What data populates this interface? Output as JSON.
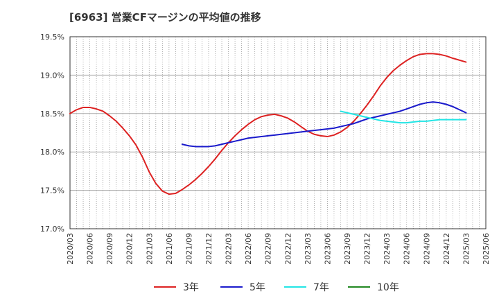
{
  "title": "[6963]  営業CFマージンの平均値の推移",
  "chart_data": {
    "type": "line",
    "x_ticks": [
      "2020/03",
      "2020/06",
      "2020/09",
      "2020/12",
      "2021/03",
      "2021/06",
      "2021/09",
      "2021/12",
      "2022/03",
      "2022/06",
      "2022/09",
      "2022/12",
      "2023/03",
      "2023/06",
      "2023/09",
      "2023/12",
      "2024/03",
      "2024/06",
      "2024/09",
      "2024/12",
      "2025/03",
      "2025/06"
    ],
    "y_ticks": [
      "17.0%",
      "17.5%",
      "18.0%",
      "18.5%",
      "19.0%",
      "19.5%"
    ],
    "ylim": [
      17.0,
      19.5
    ],
    "y_unit": "%",
    "grid": true,
    "legend_position": "bottom",
    "series": [
      {
        "name": "3年",
        "color": "#dd2222",
        "points": [
          [
            "2020/03",
            18.5
          ],
          [
            "2020/04",
            18.55
          ],
          [
            "2020/05",
            18.58
          ],
          [
            "2020/06",
            18.58
          ],
          [
            "2020/07",
            18.56
          ],
          [
            "2020/08",
            18.53
          ],
          [
            "2020/09",
            18.47
          ],
          [
            "2020/10",
            18.4
          ],
          [
            "2020/11",
            18.31
          ],
          [
            "2020/12",
            18.21
          ],
          [
            "2021/01",
            18.09
          ],
          [
            "2021/02",
            17.93
          ],
          [
            "2021/03",
            17.74
          ],
          [
            "2021/04",
            17.59
          ],
          [
            "2021/05",
            17.49
          ],
          [
            "2021/06",
            17.45
          ],
          [
            "2021/07",
            17.46
          ],
          [
            "2021/08",
            17.51
          ],
          [
            "2021/09",
            17.57
          ],
          [
            "2021/10",
            17.64
          ],
          [
            "2021/11",
            17.72
          ],
          [
            "2021/12",
            17.81
          ],
          [
            "2022/01",
            17.91
          ],
          [
            "2022/02",
            18.02
          ],
          [
            "2022/03",
            18.12
          ],
          [
            "2022/04",
            18.21
          ],
          [
            "2022/05",
            18.29
          ],
          [
            "2022/06",
            18.36
          ],
          [
            "2022/07",
            18.42
          ],
          [
            "2022/08",
            18.46
          ],
          [
            "2022/09",
            18.48
          ],
          [
            "2022/10",
            18.49
          ],
          [
            "2022/11",
            18.47
          ],
          [
            "2022/12",
            18.44
          ],
          [
            "2023/01",
            18.39
          ],
          [
            "2023/02",
            18.33
          ],
          [
            "2023/03",
            18.27
          ],
          [
            "2023/04",
            18.23
          ],
          [
            "2023/05",
            18.21
          ],
          [
            "2023/06",
            18.2
          ],
          [
            "2023/07",
            18.22
          ],
          [
            "2023/08",
            18.26
          ],
          [
            "2023/09",
            18.32
          ],
          [
            "2023/10",
            18.4
          ],
          [
            "2023/11",
            18.5
          ],
          [
            "2023/12",
            18.61
          ],
          [
            "2024/01",
            18.73
          ],
          [
            "2024/02",
            18.86
          ],
          [
            "2024/03",
            18.97
          ],
          [
            "2024/04",
            19.06
          ],
          [
            "2024/05",
            19.13
          ],
          [
            "2024/06",
            19.19
          ],
          [
            "2024/07",
            19.24
          ],
          [
            "2024/08",
            19.27
          ],
          [
            "2024/09",
            19.28
          ],
          [
            "2024/10",
            19.28
          ],
          [
            "2024/11",
            19.27
          ],
          [
            "2024/12",
            19.25
          ],
          [
            "2025/01",
            19.22
          ],
          [
            "2025/03",
            19.17
          ]
        ]
      },
      {
        "name": "5年",
        "color": "#1a1acc",
        "points": [
          [
            "2021/08",
            18.1
          ],
          [
            "2021/09",
            18.08
          ],
          [
            "2021/10",
            18.07
          ],
          [
            "2021/11",
            18.07
          ],
          [
            "2021/12",
            18.07
          ],
          [
            "2022/01",
            18.08
          ],
          [
            "2022/02",
            18.1
          ],
          [
            "2022/03",
            18.12
          ],
          [
            "2022/04",
            18.14
          ],
          [
            "2022/05",
            18.16
          ],
          [
            "2022/06",
            18.18
          ],
          [
            "2022/07",
            18.19
          ],
          [
            "2022/08",
            18.2
          ],
          [
            "2022/09",
            18.21
          ],
          [
            "2022/10",
            18.22
          ],
          [
            "2022/11",
            18.23
          ],
          [
            "2022/12",
            18.24
          ],
          [
            "2023/01",
            18.25
          ],
          [
            "2023/02",
            18.26
          ],
          [
            "2023/03",
            18.27
          ],
          [
            "2023/04",
            18.28
          ],
          [
            "2023/05",
            18.29
          ],
          [
            "2023/06",
            18.3
          ],
          [
            "2023/07",
            18.31
          ],
          [
            "2023/08",
            18.33
          ],
          [
            "2023/09",
            18.35
          ],
          [
            "2023/10",
            18.37
          ],
          [
            "2023/11",
            18.4
          ],
          [
            "2023/12",
            18.43
          ],
          [
            "2024/01",
            18.45
          ],
          [
            "2024/02",
            18.47
          ],
          [
            "2024/03",
            18.49
          ],
          [
            "2024/04",
            18.51
          ],
          [
            "2024/05",
            18.53
          ],
          [
            "2024/06",
            18.56
          ],
          [
            "2024/07",
            18.59
          ],
          [
            "2024/08",
            18.62
          ],
          [
            "2024/09",
            18.64
          ],
          [
            "2024/10",
            18.65
          ],
          [
            "2024/11",
            18.64
          ],
          [
            "2024/12",
            18.62
          ],
          [
            "2025/01",
            18.59
          ],
          [
            "2025/02",
            18.55
          ],
          [
            "2025/03",
            18.51
          ]
        ]
      },
      {
        "name": "7年",
        "color": "#22e5e5",
        "points": [
          [
            "2023/08",
            18.53
          ],
          [
            "2023/09",
            18.51
          ],
          [
            "2023/10",
            18.49
          ],
          [
            "2023/11",
            18.47
          ],
          [
            "2023/12",
            18.45
          ],
          [
            "2024/01",
            18.43
          ],
          [
            "2024/02",
            18.41
          ],
          [
            "2024/03",
            18.4
          ],
          [
            "2024/04",
            18.39
          ],
          [
            "2024/05",
            18.38
          ],
          [
            "2024/06",
            18.38
          ],
          [
            "2024/07",
            18.39
          ],
          [
            "2024/08",
            18.4
          ],
          [
            "2024/09",
            18.4
          ],
          [
            "2024/10",
            18.41
          ],
          [
            "2024/11",
            18.42
          ],
          [
            "2024/12",
            18.42
          ],
          [
            "2025/01",
            18.42
          ],
          [
            "2025/03",
            18.42
          ]
        ]
      },
      {
        "name": "10年",
        "color": "#228822",
        "points": []
      }
    ]
  }
}
